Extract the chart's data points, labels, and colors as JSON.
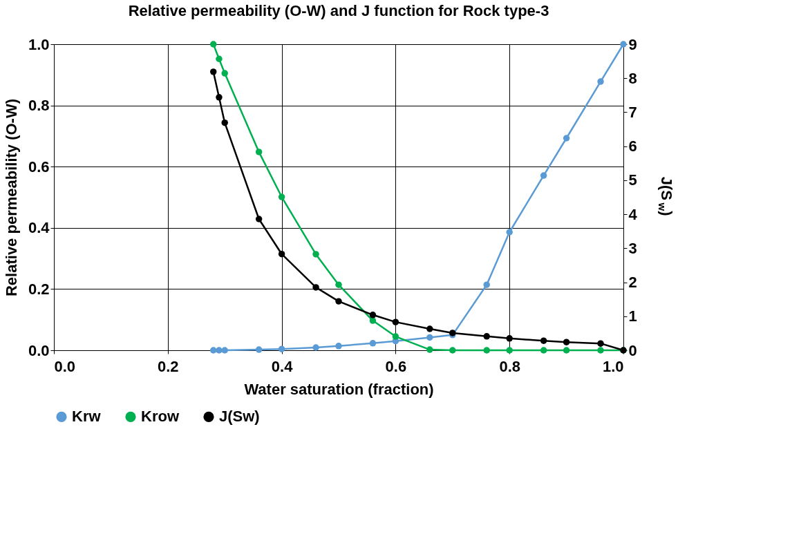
{
  "chart_data": {
    "type": "line",
    "title": "Relative permeability (O-W) and J function for Rock type-3",
    "xlabel": "Water saturation (fraction)",
    "ylabel": "Relative permeability (O-W)",
    "y2label": "J(S$_{w}$)",
    "x": [
      0.28,
      0.29,
      0.3,
      0.36,
      0.4,
      0.46,
      0.5,
      0.56,
      0.6,
      0.66,
      0.7,
      0.76,
      0.8,
      0.86,
      0.9,
      0.96,
      1.0
    ],
    "series": [
      {
        "name": "Krw",
        "color": "#5b9bd5",
        "values": [
          0,
          0,
          0,
          0.002,
          0.004,
          0.009,
          0.014,
          0.023,
          0.03,
          0.042,
          0.05,
          0.214,
          0.386,
          0.571,
          0.693,
          0.878,
          1.0
        ]
      },
      {
        "name": "Krow",
        "color": "#00b050",
        "values": [
          1.0,
          0.952,
          0.905,
          0.648,
          0.501,
          0.314,
          0.214,
          0.097,
          0.045,
          0.002,
          0,
          0,
          0,
          0,
          0,
          0,
          0
        ]
      },
      {
        "name": "J(Sw)",
        "color": "#000000",
        "axis": "y2",
        "values": [
          8.19,
          7.44,
          6.69,
          3.86,
          2.83,
          1.85,
          1.44,
          1.04,
          0.83,
          0.63,
          0.51,
          0.41,
          0.35,
          0.28,
          0.24,
          0.2,
          0
        ]
      }
    ],
    "xlim": [
      0,
      1
    ],
    "xticks": [
      {
        "value": 0,
        "label": "0.0"
      },
      {
        "value": 0.2,
        "label": "0.2"
      },
      {
        "value": 0.4,
        "label": "0.4"
      },
      {
        "value": 0.6,
        "label": "0.6"
      },
      {
        "value": 0.8,
        "label": "0.8"
      },
      {
        "value": 1,
        "label": "1.0"
      }
    ],
    "ylim": [
      0,
      1
    ],
    "yticks": [
      {
        "value": 0,
        "label": "0.0"
      },
      {
        "value": 0.2,
        "label": "0.2"
      },
      {
        "value": 0.4,
        "label": "0.4"
      },
      {
        "value": 0.6,
        "label": "0.6"
      },
      {
        "value": 0.8,
        "label": "0.8"
      },
      {
        "value": 1,
        "label": "1.0"
      }
    ],
    "y2lim": [
      0,
      9
    ],
    "y2ticks": [
      0,
      1,
      2,
      3,
      4,
      5,
      6,
      7,
      8,
      9
    ],
    "grid": true,
    "legend": "bottom",
    "marker": "circle",
    "line_style": "solid"
  }
}
